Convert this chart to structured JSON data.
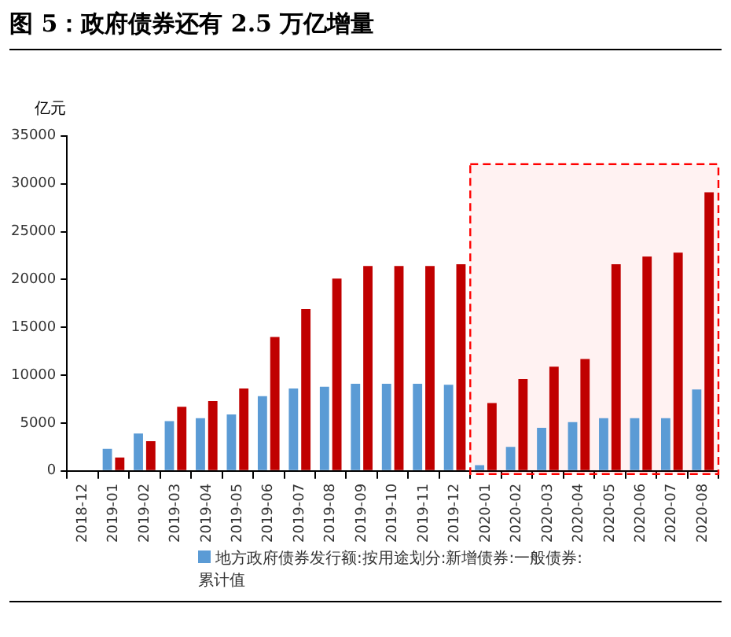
{
  "chart_data": {
    "type": "bar",
    "title": "图 5：政府债券还有 2.5 万亿增量",
    "ylabel": "亿元",
    "categories": [
      "2018-12",
      "2019-01",
      "2019-02",
      "2019-03",
      "2019-04",
      "2019-05",
      "2019-06",
      "2019-07",
      "2019-08",
      "2019-09",
      "2019-10",
      "2019-11",
      "2019-12",
      "2020-01",
      "2020-02",
      "2020-03",
      "2020-04",
      "2020-05",
      "2020-06",
      "2020-07",
      "2020-08"
    ],
    "series": [
      {
        "name": "地方政府债券发行额:按用途划分:新增债券:一般债券:累计值",
        "color": "#5b9bd5",
        "values": [
          null,
          2300,
          3900,
          5200,
          5500,
          5900,
          7800,
          8600,
          8800,
          9100,
          9100,
          9100,
          9000,
          600,
          2500,
          4500,
          5100,
          5500,
          5500,
          5500,
          8500
        ]
      },
      {
        "color": "#c00000",
        "values": [
          null,
          1400,
          3100,
          6700,
          7300,
          8600,
          14000,
          16900,
          20100,
          21400,
          21400,
          21400,
          21600,
          7100,
          9600,
          10900,
          11700,
          21600,
          22400,
          22800,
          29100
        ]
      }
    ],
    "ylim": [
      0,
      35000
    ],
    "yticks": [
      0,
      5000,
      10000,
      15000,
      20000,
      25000,
      30000,
      35000
    ],
    "bands": [
      {
        "axis": "x",
        "from": "2020-01",
        "to": "2020-08",
        "color": "#ff0000"
      }
    ],
    "grid": false,
    "legend": "bottom"
  }
}
